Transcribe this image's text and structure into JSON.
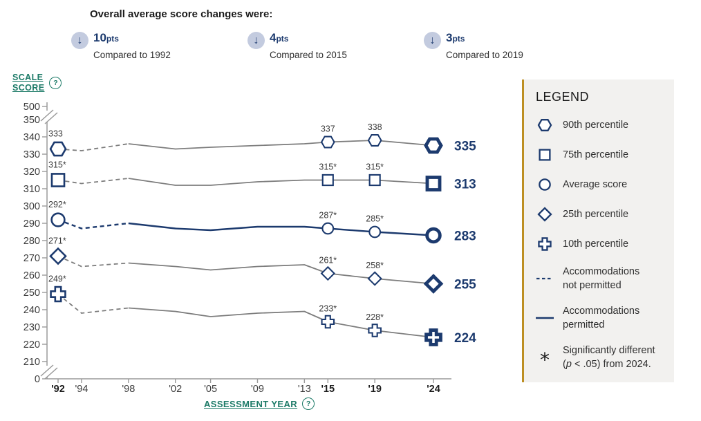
{
  "colors": {
    "navy": "#1c3a6e",
    "line_gray": "#7d7d7d",
    "axis_gray": "#9a9a9a",
    "tick_text": "#3c3c3c",
    "bold_tick_text": "#1b1b1b",
    "data_label": "#3a3a3a",
    "teal": "#1c7a67",
    "legend_bg": "#f2f1ef",
    "legend_border_gold": "#bd8f23",
    "arrow_circle_bg": "#c3cbdf"
  },
  "header": {
    "title": "Overall average score changes were:",
    "changes": [
      {
        "arrow_glyph": "↓",
        "value": "10",
        "unit": "pts",
        "caption": "Compared to 1992"
      },
      {
        "arrow_glyph": "↓",
        "value": "4",
        "unit": "pts",
        "caption": "Compared to 2015"
      },
      {
        "arrow_glyph": "↓",
        "value": "3",
        "unit": "pts",
        "caption": "Compared to 2019"
      }
    ]
  },
  "axes": {
    "y_title_line1": "SCALE",
    "y_title_line2": "SCORE",
    "x_title": "ASSESSMENT YEAR",
    "help_glyph": "?",
    "y_ticks": [
      500,
      350,
      340,
      330,
      320,
      310,
      300,
      290,
      280,
      270,
      260,
      250,
      240,
      230,
      220,
      210,
      0
    ],
    "x_ticks": [
      {
        "label": "'92",
        "year": 1992,
        "bold": true
      },
      {
        "label": "'94",
        "year": 1994,
        "bold": false
      },
      {
        "label": "'98",
        "year": 1998,
        "bold": false
      },
      {
        "label": "'02",
        "year": 2002,
        "bold": false
      },
      {
        "label": "'05",
        "year": 2005,
        "bold": false
      },
      {
        "label": "'09",
        "year": 2009,
        "bold": false
      },
      {
        "label": "'13",
        "year": 2013,
        "bold": false
      },
      {
        "label": "'15",
        "year": 2015,
        "bold": true
      },
      {
        "label": "'19",
        "year": 2019,
        "bold": true
      },
      {
        "label": "'24",
        "year": 2024,
        "bold": true
      }
    ]
  },
  "chart_data": {
    "type": "line",
    "title": "Overall average score changes were:",
    "xlabel": "ASSESSMENT YEAR",
    "ylabel": "SCALE SCORE",
    "ylim": [
      0,
      500
    ],
    "y_axis_breaks": [
      [
        0,
        210
      ],
      [
        350,
        500
      ]
    ],
    "x": [
      1992,
      1994,
      1998,
      2002,
      2005,
      2009,
      2013,
      2015,
      2019,
      2024
    ],
    "dashed_until_year": 1998,
    "dashed_meaning": "Accommodations not permitted",
    "solid_meaning": "Accommodations permitted",
    "marker_years": [
      1992,
      2015,
      2019,
      2024
    ],
    "series": [
      {
        "name": "90th percentile",
        "marker": "hexagon",
        "emphasis": false,
        "values": [
          333,
          332,
          336,
          333,
          334,
          335,
          336,
          337,
          338,
          335
        ],
        "point_labels": {
          "1992": "333",
          "2015": "337",
          "2019": "338"
        },
        "end_label": "335"
      },
      {
        "name": "75th percentile",
        "marker": "square",
        "emphasis": false,
        "values": [
          315,
          313,
          316,
          312,
          312,
          314,
          315,
          315,
          315,
          313
        ],
        "point_labels": {
          "1992": "315*",
          "2015": "315*",
          "2019": "315*"
        },
        "end_label": "313"
      },
      {
        "name": "Average score",
        "marker": "circle",
        "emphasis": true,
        "values": [
          292,
          287,
          290,
          287,
          286,
          288,
          288,
          287,
          285,
          283
        ],
        "point_labels": {
          "1992": "292*",
          "2015": "287*",
          "2019": "285*"
        },
        "end_label": "283"
      },
      {
        "name": "25th percentile",
        "marker": "diamond",
        "emphasis": false,
        "values": [
          271,
          265,
          267,
          265,
          263,
          265,
          266,
          261,
          258,
          255
        ],
        "point_labels": {
          "1992": "271*",
          "2015": "261*",
          "2019": "258*"
        },
        "end_label": "255"
      },
      {
        "name": "10th percentile",
        "marker": "cross",
        "emphasis": false,
        "values": [
          249,
          238,
          241,
          239,
          236,
          238,
          239,
          233,
          228,
          224
        ],
        "point_labels": {
          "1992": "249*",
          "2015": "233*",
          "2019": "228*"
        },
        "end_label": "224"
      }
    ]
  },
  "legend": {
    "title": "LEGEND",
    "items": [
      {
        "marker": "hexagon",
        "lines": [
          "90th percentile"
        ]
      },
      {
        "marker": "square",
        "lines": [
          "75th percentile"
        ]
      },
      {
        "marker": "circle",
        "lines": [
          "Average score"
        ]
      },
      {
        "marker": "diamond",
        "lines": [
          "25th percentile"
        ]
      },
      {
        "marker": "cross",
        "lines": [
          "10th percentile"
        ]
      },
      {
        "marker": "dashed-line",
        "lines": [
          "Accommodations",
          "not permitted"
        ]
      },
      {
        "marker": "solid-line",
        "lines": [
          "Accommodations",
          "permitted"
        ]
      },
      {
        "marker": "asterisk",
        "lines": [
          "Significantly different"
        ],
        "note_pre": "(",
        "note_italic": "p",
        "note_post": " < .05) from 2024."
      }
    ]
  }
}
